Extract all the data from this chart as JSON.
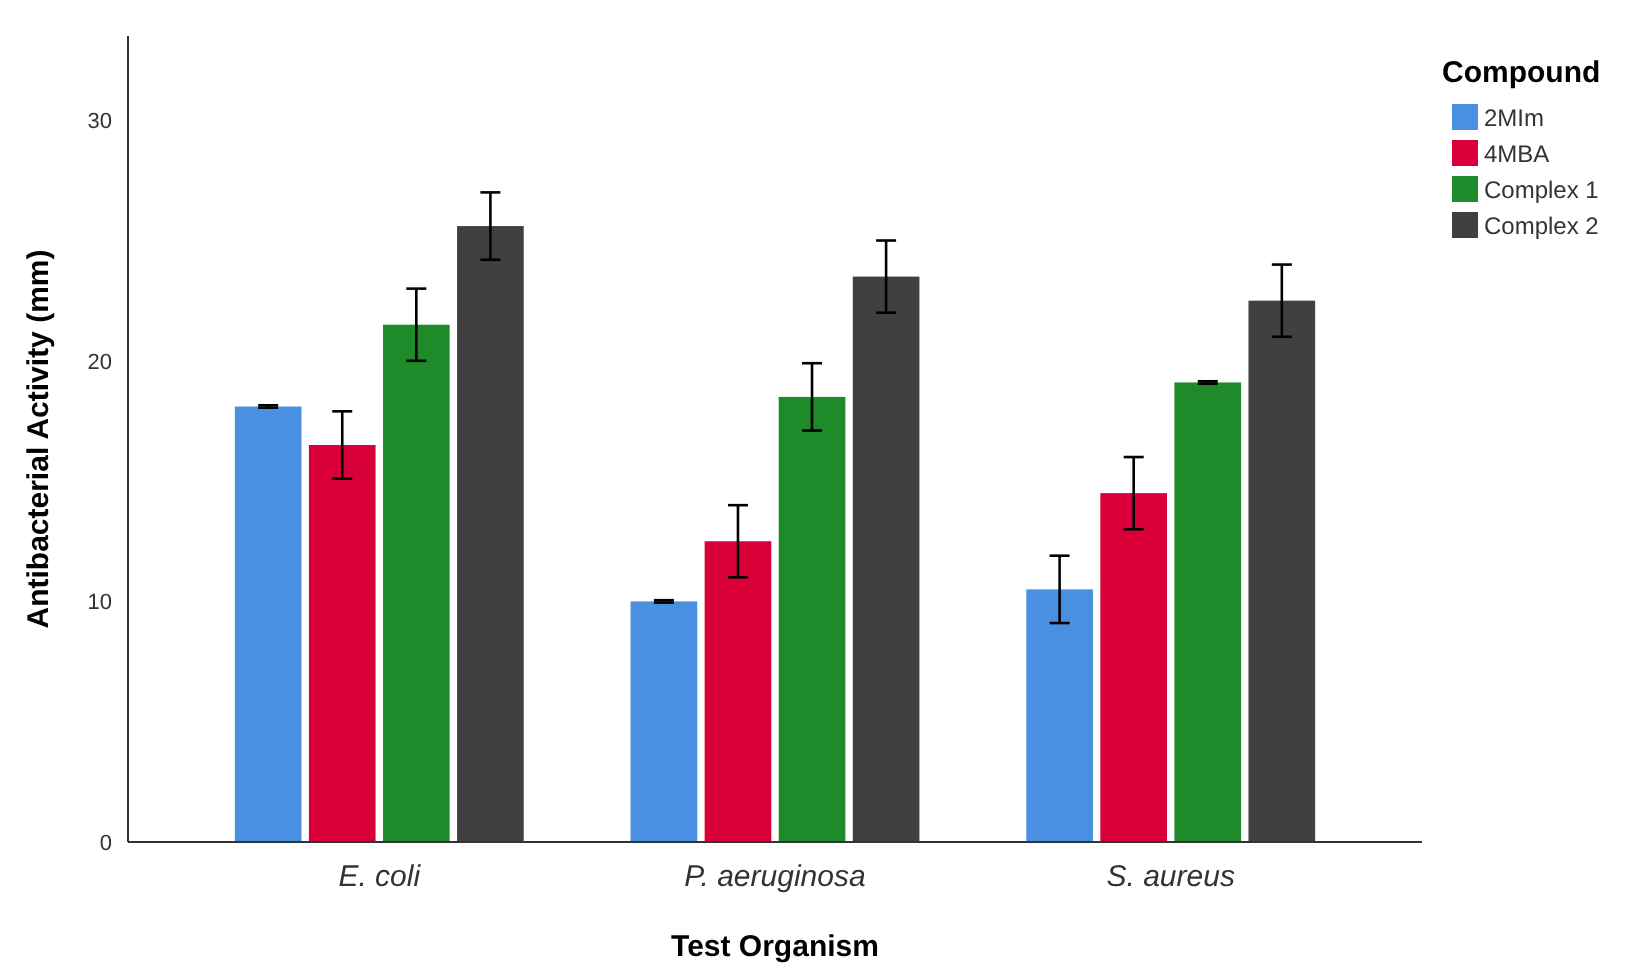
{
  "chart_data": {
    "type": "bar",
    "xlabel": "Test Organism",
    "ylabel": "Antibacterial Activity (mm)",
    "legend_title": "Compound",
    "legend": "top right",
    "categories": [
      "E. coli",
      "P. aeruginosa",
      "S. aureus"
    ],
    "ylim": [
      0,
      33.5
    ],
    "yticks": [
      0,
      10,
      20,
      30
    ],
    "grid": false,
    "series": [
      {
        "name": "2MIm",
        "color": "#4a90e2",
        "values": [
          18.1,
          10.0,
          10.5
        ],
        "errors": [
          0.05,
          0.05,
          1.4
        ]
      },
      {
        "name": "4MBA",
        "color": "#d9003a",
        "values": [
          16.5,
          12.5,
          14.5
        ],
        "errors": [
          1.4,
          1.5,
          1.5
        ]
      },
      {
        "name": "Complex 1",
        "color": "#1e8a2a",
        "values": [
          21.5,
          18.5,
          19.1
        ],
        "errors": [
          1.5,
          1.4,
          0.05
        ]
      },
      {
        "name": "Complex 2",
        "color": "#404040",
        "values": [
          25.6,
          23.5,
          22.5
        ],
        "errors": [
          1.4,
          1.5,
          1.5
        ]
      }
    ]
  }
}
